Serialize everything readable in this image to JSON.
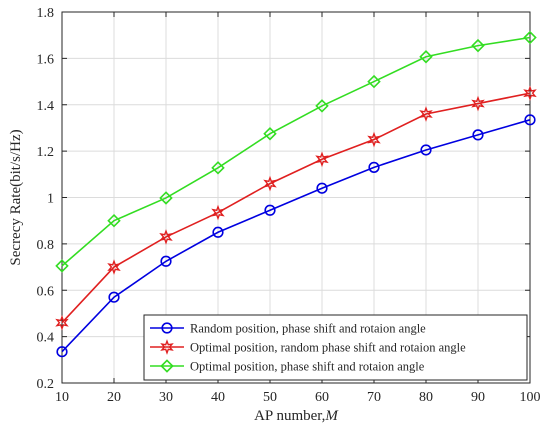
{
  "chart_data": {
    "type": "line",
    "xlabel_text": "AP number,",
    "xlabel_var": "M",
    "ylabel": "Secrecy Rate(bit/s/Hz)",
    "xlim": [
      10,
      100
    ],
    "ylim": [
      0.2,
      1.8
    ],
    "x_ticks": [
      10,
      20,
      30,
      40,
      50,
      60,
      70,
      80,
      90,
      100
    ],
    "y_ticks": [
      0.2,
      0.4,
      0.6,
      0.8,
      1,
      1.2,
      1.4,
      1.6,
      1.8
    ],
    "grid": true,
    "legend_position": "bottom-right",
    "x": [
      10,
      20,
      30,
      40,
      50,
      60,
      70,
      80,
      90,
      100
    ],
    "series": [
      {
        "name": "Random position, phase shift and rotaion angle",
        "color": "#0000e0",
        "marker": "circle",
        "values": [
          0.335,
          0.57,
          0.725,
          0.85,
          0.945,
          1.04,
          1.13,
          1.205,
          1.27,
          1.335
        ]
      },
      {
        "name": "Optimal position, random phase shift and rotaion angle",
        "color": "#e02020",
        "marker": "star",
        "values": [
          0.46,
          0.7,
          0.83,
          0.935,
          1.06,
          1.165,
          1.25,
          1.36,
          1.405,
          1.45
        ]
      },
      {
        "name": "Optimal position, phase shift and rotaion angle",
        "color": "#33dd22",
        "marker": "diamond",
        "values": [
          0.705,
          0.9,
          0.998,
          1.128,
          1.275,
          1.395,
          1.5,
          1.607,
          1.655,
          1.69
        ]
      }
    ]
  }
}
